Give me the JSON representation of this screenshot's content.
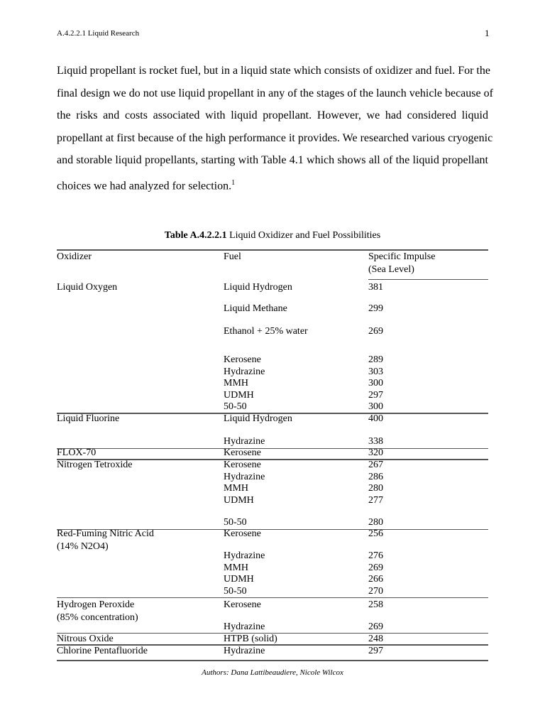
{
  "header": {
    "section": "A.4.2.2.1 Liquid Research",
    "page_number": "1"
  },
  "paragraph": {
    "lines": [
      "Liquid propellant is rocket fuel, but in a liquid state which consists of oxidizer and fuel.  For the",
      "final design we do not use liquid propellant in any of the stages of the launch vehicle because of",
      "the risks and costs associated with liquid propellant. However, we had considered liquid",
      "propellant at first because of the high performance it provides. We researched various cryogenic",
      "and storable liquid propellants, starting with Table 4.1 which shows all of the liquid propellant",
      "choices we had analyzed for selection."
    ],
    "footnote_ref": "1"
  },
  "table": {
    "caption_label": "Table A.4.2.2.1",
    "caption_text": " Liquid Oxidizer and Fuel Possibilities",
    "headers": {
      "oxidizer": "Oxidizer",
      "fuel": "Fuel",
      "isp_line1": "Specific Impulse",
      "isp_line2": "(Sea Level)"
    },
    "oxidizers": [
      "Liquid Oxygen",
      "Liquid Fluorine",
      "FLOX-70",
      "Nitrogen Tetroxide",
      "Red-Fuming Nitric Acid",
      "(14% N2O4)",
      "Hydrogen Peroxide",
      "(85% concentration)",
      "Nitrous Oxide",
      "Chlorine Pentafluoride"
    ],
    "rows": [
      {
        "fuel": "Liquid Hydrogen",
        "isp": "381"
      },
      {
        "fuel": "Liquid Methane",
        "isp": "299"
      },
      {
        "fuel": "Ethanol + 25% water",
        "isp": "269"
      },
      {
        "fuel": "Kerosene",
        "isp": "289"
      },
      {
        "fuel": "Hydrazine",
        "isp": "303"
      },
      {
        "fuel": "MMH",
        "isp": "300"
      },
      {
        "fuel": "UDMH",
        "isp": "297"
      },
      {
        "fuel": "50-50",
        "isp": "300"
      },
      {
        "fuel": "Liquid Hydrogen",
        "isp": "400"
      },
      {
        "fuel": "Hydrazine",
        "isp": "338"
      },
      {
        "fuel": "Kerosene",
        "isp": "320"
      },
      {
        "fuel": "Kerosene",
        "isp": "267"
      },
      {
        "fuel": "Hydrazine",
        "isp": "286"
      },
      {
        "fuel": "MMH",
        "isp": "280"
      },
      {
        "fuel": "UDMH",
        "isp": "277"
      },
      {
        "fuel": "50-50",
        "isp": "280"
      },
      {
        "fuel": "Kerosene",
        "isp": "256"
      },
      {
        "fuel": "Hydrazine",
        "isp": "276"
      },
      {
        "fuel": "MMH",
        "isp": "269"
      },
      {
        "fuel": "UDMH",
        "isp": "266"
      },
      {
        "fuel": "50-50",
        "isp": "270"
      },
      {
        "fuel": "Kerosene",
        "isp": "258"
      },
      {
        "fuel": "Hydrazine",
        "isp": "269"
      },
      {
        "fuel": "HTPB (solid)",
        "isp": "248"
      },
      {
        "fuel": "Hydrazine",
        "isp": "297"
      }
    ]
  },
  "footer": {
    "authors": "Authors: Dana Lattibeaudiere, Nicole Wilcox"
  }
}
